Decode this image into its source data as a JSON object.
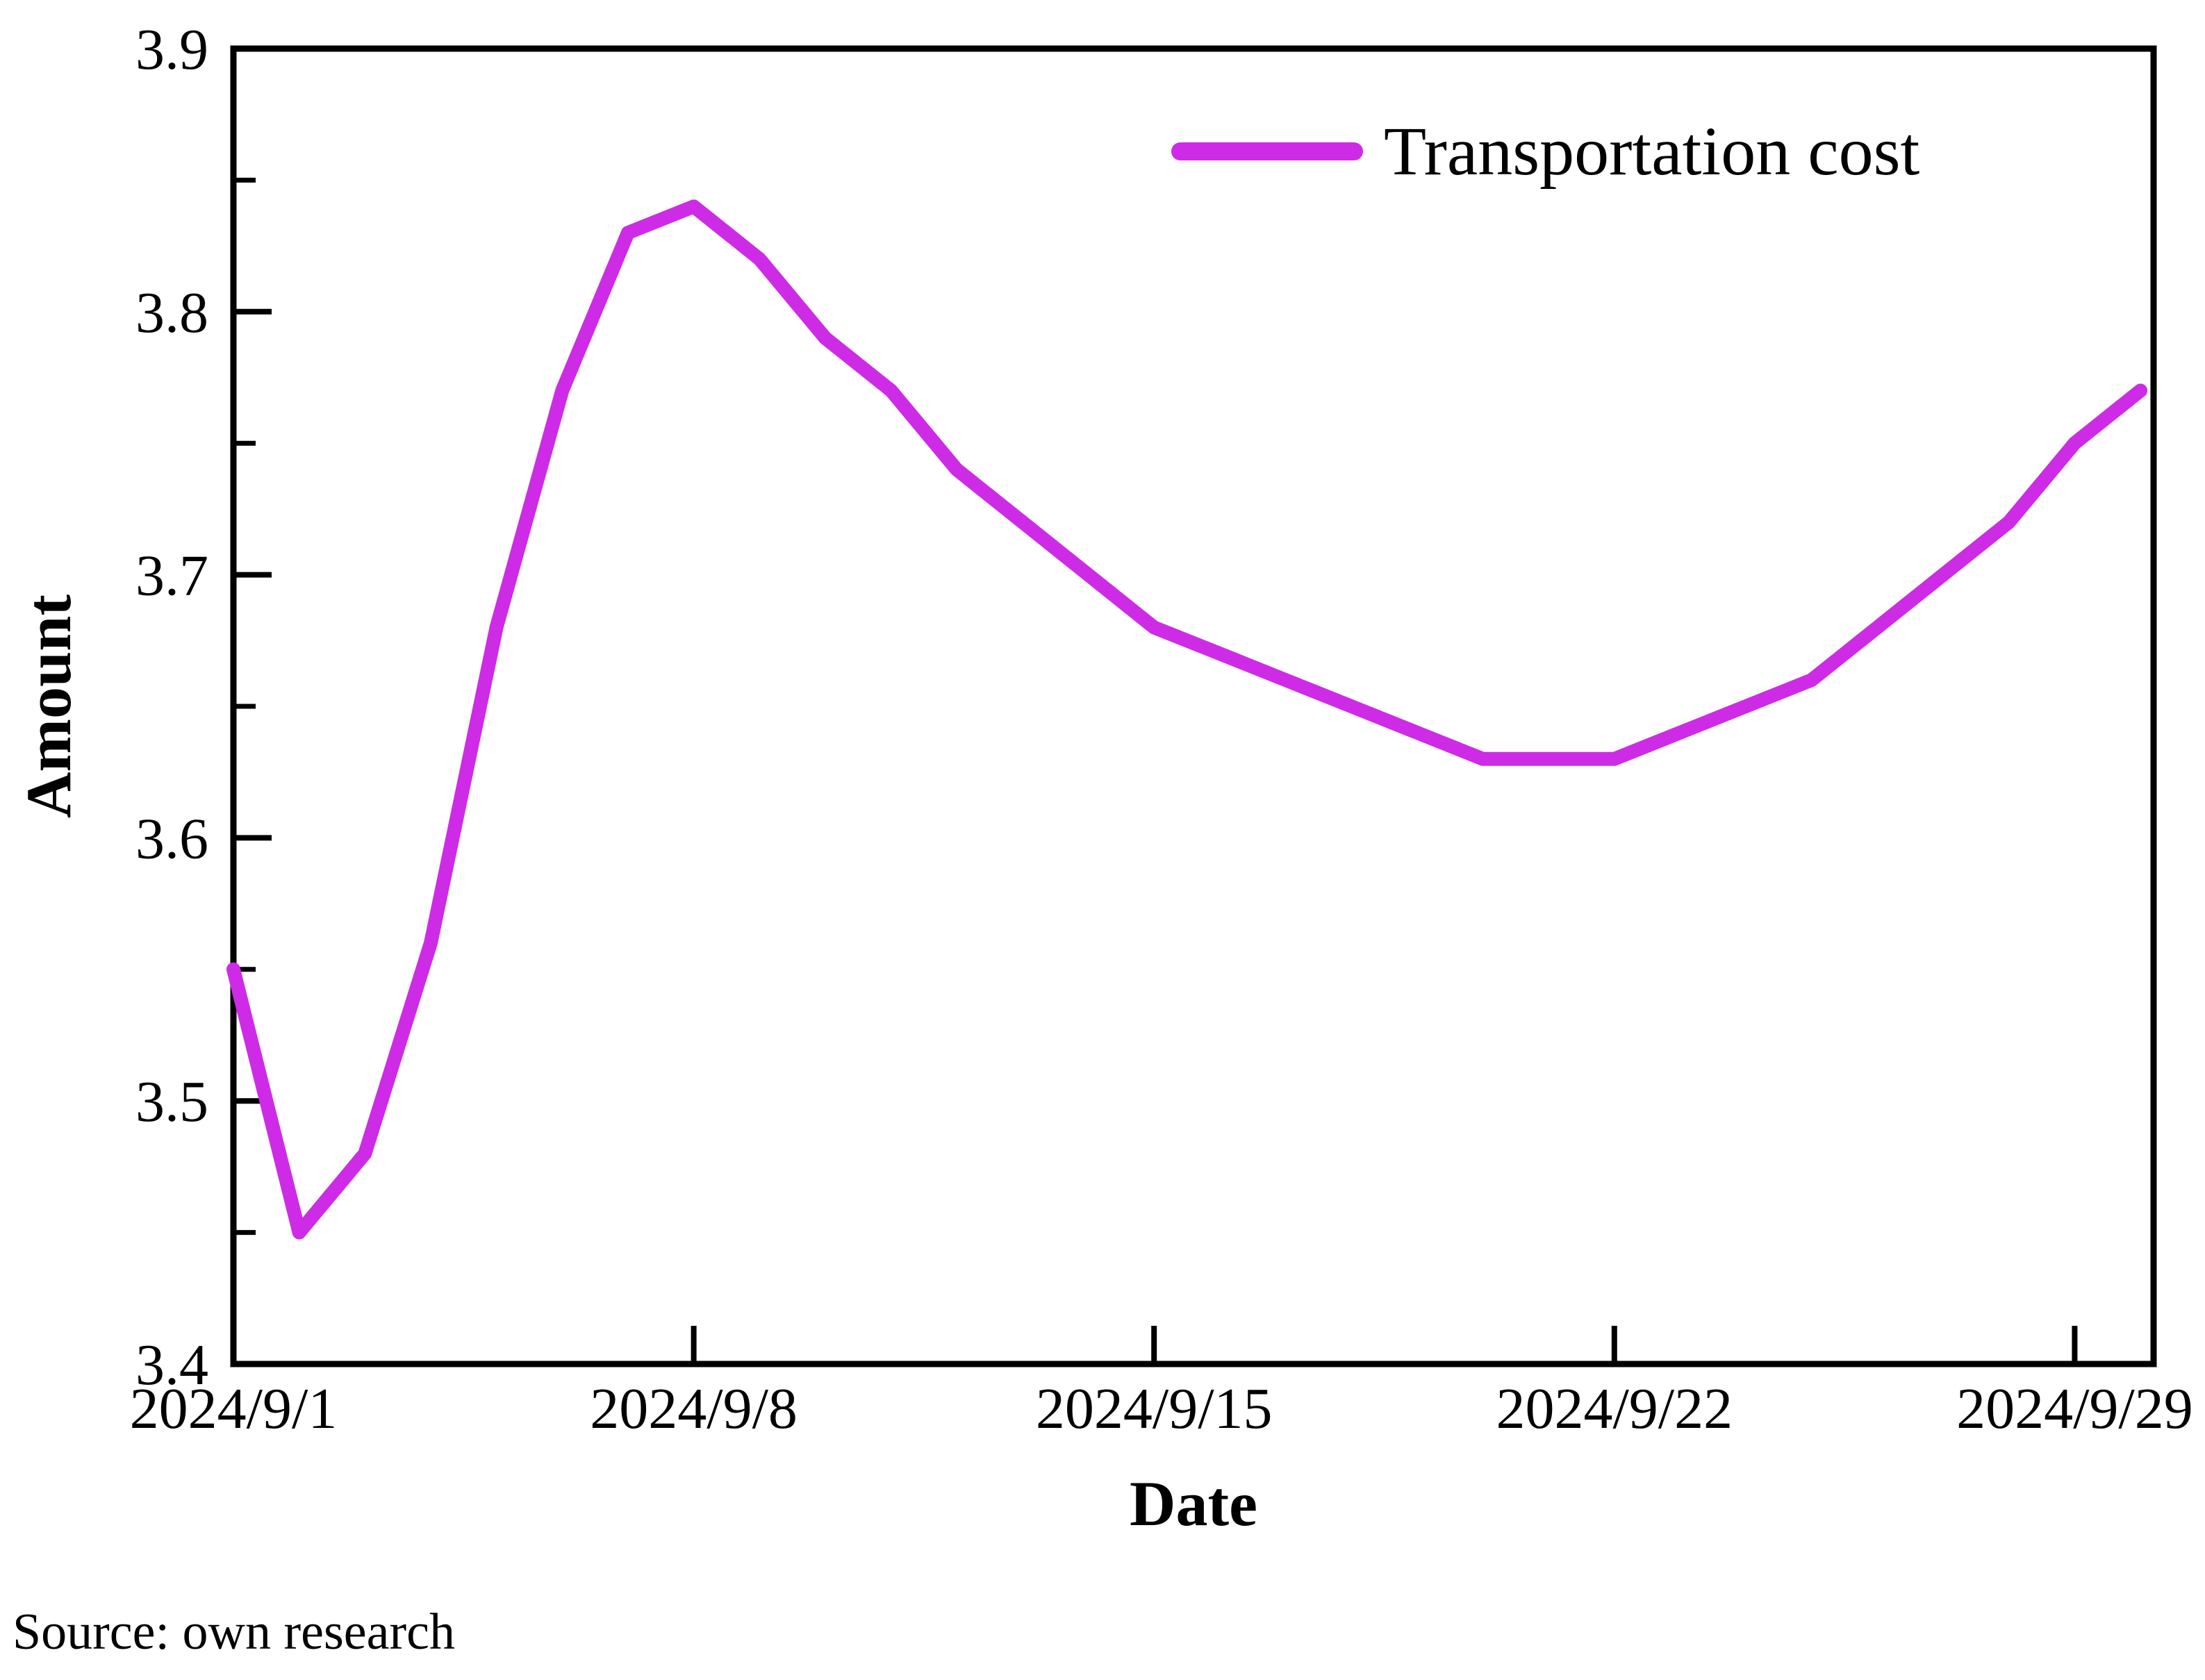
{
  "chart_data": {
    "type": "line",
    "title": "",
    "xlabel": "Date",
    "ylabel": "Amount",
    "ylim": [
      3.4,
      3.9
    ],
    "grid": false,
    "legend_position": "top-right",
    "axis_color": "#000000",
    "y_tick_labels": [
      "3.4",
      "3.5",
      "3.6",
      "3.7",
      "3.8",
      "3.9"
    ],
    "y_tick_values": [
      3.4,
      3.5,
      3.6,
      3.7,
      3.8,
      3.9
    ],
    "y_minor_tick_values": [
      3.45,
      3.55,
      3.65,
      3.75,
      3.85
    ],
    "x_tick_labels": [
      "2024/9/1",
      "2024/9/8",
      "2024/9/15",
      "2024/9/22",
      "2024/9/29"
    ],
    "x_tick_days": [
      1,
      8,
      15,
      22,
      29
    ],
    "x": [
      "2024/9/1",
      "2024/9/2",
      "2024/9/3",
      "2024/9/4",
      "2024/9/5",
      "2024/9/6",
      "2024/9/7",
      "2024/9/8",
      "2024/9/9",
      "2024/9/10",
      "2024/9/11",
      "2024/9/12",
      "2024/9/13",
      "2024/9/14",
      "2024/9/15",
      "2024/9/16",
      "2024/9/17",
      "2024/9/18",
      "2024/9/19",
      "2024/9/20",
      "2024/9/21",
      "2024/9/22",
      "2024/9/23",
      "2024/9/24",
      "2024/9/25",
      "2024/9/26",
      "2024/9/27",
      "2024/9/28",
      "2024/9/29",
      "2024/9/30"
    ],
    "series": [
      {
        "name": "Transportation cost",
        "color": "#CE2BE6",
        "values": [
          3.55,
          3.45,
          3.48,
          3.56,
          3.68,
          3.77,
          3.83,
          3.84,
          3.82,
          3.79,
          3.77,
          3.74,
          3.72,
          3.7,
          3.68,
          3.67,
          3.66,
          3.65,
          3.64,
          3.63,
          3.63,
          3.63,
          3.64,
          3.65,
          3.66,
          3.68,
          3.7,
          3.72,
          3.75,
          3.77
        ]
      }
    ]
  },
  "footer": {
    "source": "Source: own research"
  }
}
